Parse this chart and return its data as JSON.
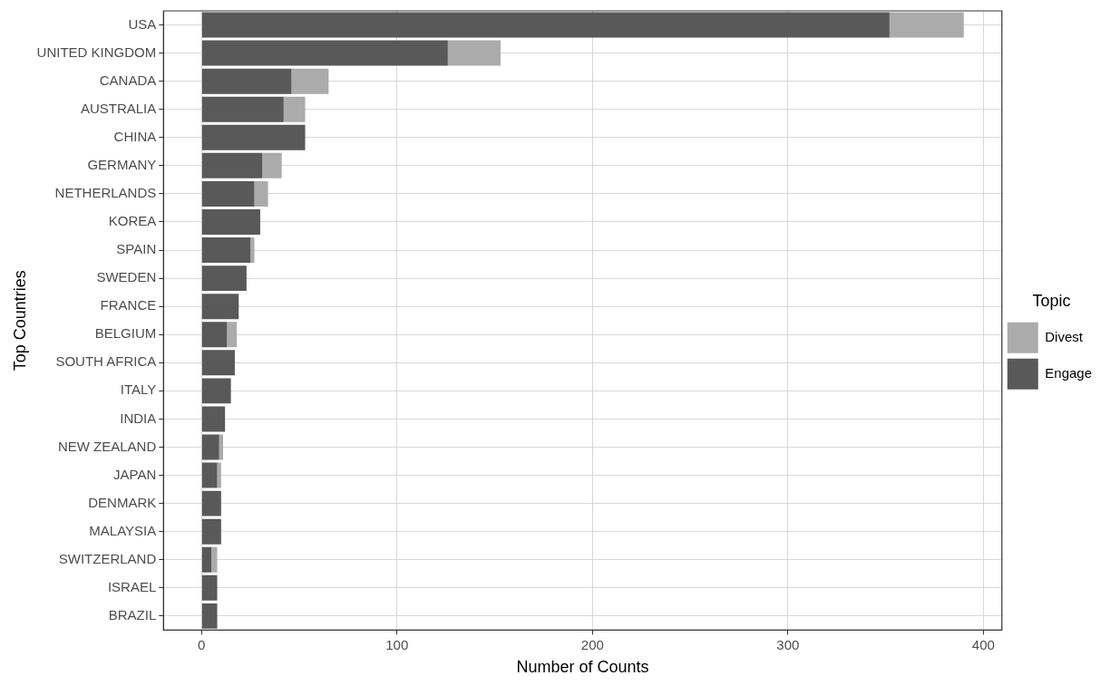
{
  "chart_data": {
    "type": "bar",
    "orientation": "horizontal",
    "stacked": true,
    "xlabel": "Number of Counts",
    "ylabel": "Top Countries",
    "legend_title": "Topic",
    "legend": "right",
    "grid": true,
    "categories": [
      "USA",
      "UNITED KINGDOM",
      "CANADA",
      "AUSTRALIA",
      "CHINA",
      "GERMANY",
      "NETHERLANDS",
      "KOREA",
      "SPAIN",
      "SWEDEN",
      "FRANCE",
      "BELGIUM",
      "SOUTH AFRICA",
      "ITALY",
      "INDIA",
      "NEW ZEALAND",
      "JAPAN",
      "DENMARK",
      "MALAYSIA",
      "SWITZERLAND",
      "ISRAEL",
      "BRAZIL"
    ],
    "series": [
      {
        "name": "Engage",
        "color": "#595959",
        "values": [
          352,
          126,
          46,
          42,
          53,
          31,
          27,
          30,
          25,
          23,
          19,
          13,
          17,
          15,
          12,
          9,
          8,
          10,
          10,
          5,
          8,
          8
        ]
      },
      {
        "name": "Divest",
        "color": "#ababab",
        "values": [
          38,
          27,
          19,
          11,
          0,
          10,
          7,
          0,
          2,
          0,
          0,
          5,
          0,
          0,
          0,
          2,
          2,
          0,
          0,
          3,
          0,
          0
        ]
      }
    ],
    "xlim": [
      -19.5,
      409.5
    ],
    "xticks": [
      0,
      100,
      200,
      300,
      400
    ]
  }
}
